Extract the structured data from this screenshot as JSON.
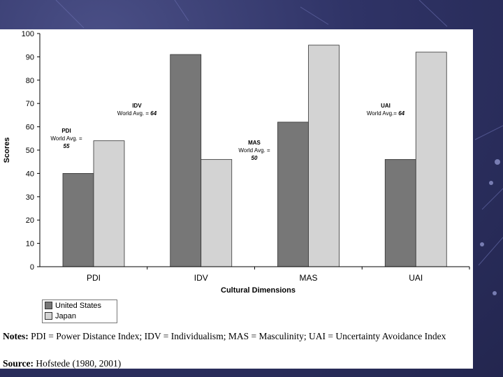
{
  "chart_data": {
    "type": "bar",
    "title": "",
    "xlabel": "Cultural Dimensions",
    "ylabel": "Scores",
    "ylim": [
      0,
      100
    ],
    "yticks": [
      0,
      10,
      20,
      30,
      40,
      50,
      60,
      70,
      80,
      90,
      100
    ],
    "categories": [
      "PDI",
      "IDV",
      "MAS",
      "UAI"
    ],
    "series": [
      {
        "name": "United States",
        "color": "#777777",
        "values": [
          40,
          91,
          62,
          46
        ]
      },
      {
        "name": "Japan",
        "color": "#d3d3d3",
        "values": [
          54,
          46,
          95,
          92
        ]
      }
    ],
    "annotations": [
      {
        "category": "PDI",
        "label": "PDI",
        "sub": "World Avg. =",
        "value": "55"
      },
      {
        "category": "IDV",
        "label": "IDV",
        "sub": "World Avg. =",
        "value": "64"
      },
      {
        "category": "MAS",
        "label": "MAS",
        "sub": "World Avg. =",
        "value": "50"
      },
      {
        "category": "UAI",
        "label": "UAI",
        "sub": "World Avg.=",
        "value": "64"
      }
    ]
  },
  "legend": {
    "items": [
      {
        "label": "United States",
        "color": "#777777"
      },
      {
        "label": "Japan",
        "color": "#d3d3d3"
      }
    ]
  },
  "notes": {
    "heading": "Notes:",
    "text": "PDI = Power Distance Index; IDV = Individualism; MAS = Masculinity; UAI = Uncertainty Avoidance Index"
  },
  "source": {
    "heading": "Source:",
    "text": "Hofstede (1980, 2001)"
  }
}
